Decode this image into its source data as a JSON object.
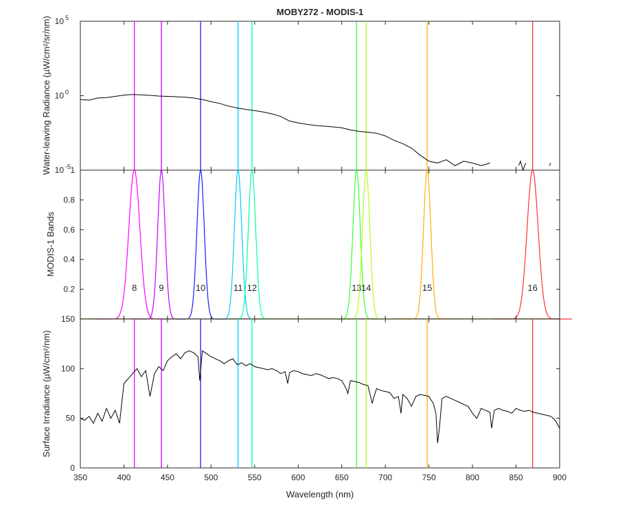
{
  "figure": {
    "title": "MOBY272 - MODIS-1",
    "xlabel": "Wavelength (nm)",
    "x_ticks": [
      "350",
      "400",
      "450",
      "500",
      "550",
      "600",
      "650",
      "700",
      "750",
      "800",
      "850",
      "900"
    ]
  },
  "band_colors": [
    "#ff00ff",
    "#bf00ff",
    "#1a1aff",
    "#00c8ff",
    "#00ffaa",
    "#33ff33",
    "#b3ff1a",
    "#ffae00",
    "#ff3030"
  ],
  "chart_data": [
    {
      "type": "line",
      "title": "MOBY272 - MODIS-1",
      "ylabel": "Water-leaving Radiance (µW/cm²/sr/nm)",
      "yscale": "log",
      "xlim": [
        350,
        900
      ],
      "ylim": [
        1e-05,
        100000.0
      ],
      "y_ticks": [
        {
          "base": "10",
          "exp": "5",
          "value": 100000
        },
        {
          "base": "10",
          "exp": "0",
          "value": 1
        },
        {
          "base": "10",
          "exp": "-5",
          "value": 1e-05
        }
      ],
      "band_centers": [
        412,
        443,
        488,
        531,
        547,
        667,
        678,
        748,
        869
      ],
      "series": [
        {
          "x": [
            350,
            360,
            370,
            380,
            390,
            400,
            410,
            420,
            430,
            440,
            450,
            460,
            470,
            480,
            490,
            500,
            510,
            520,
            530,
            540,
            550,
            560,
            570,
            580,
            590,
            600,
            610,
            620,
            630,
            640,
            650,
            660,
            670,
            680,
            690,
            700,
            710,
            720,
            730,
            740,
            750,
            760,
            770,
            780,
            790,
            800,
            810,
            820,
            853,
            855,
            858,
            861,
            888,
            890
          ],
          "y": [
            0.55,
            0.5,
            0.7,
            0.75,
            0.9,
            1.1,
            1.2,
            1.15,
            1.05,
            0.95,
            0.9,
            0.85,
            0.8,
            0.7,
            0.55,
            0.4,
            0.3,
            0.2,
            0.15,
            0.12,
            0.1,
            0.08,
            0.06,
            0.04,
            0.02,
            0.015,
            0.012,
            0.01,
            0.009,
            0.008,
            0.007,
            0.005,
            0.004,
            0.0035,
            0.003,
            0.002,
            0.001,
            0.0006,
            0.0003,
            0.0001,
            4e-05,
            3e-05,
            5e-05,
            2e-05,
            4e-05,
            3e-05,
            2e-05,
            3e-05,
            2e-05,
            4e-05,
            1e-05,
            3e-05,
            2e-05,
            3e-05
          ]
        }
      ]
    },
    {
      "type": "line",
      "ylabel": "MODIS-1 Bands",
      "xlim": [
        350,
        900
      ],
      "ylim": [
        0,
        1
      ],
      "y_ticks": [
        "0.2",
        "0.4",
        "0.6",
        "0.8",
        "1"
      ],
      "bands": [
        {
          "label": "8",
          "center": 412,
          "width": 15,
          "color_index": 0
        },
        {
          "label": "9",
          "center": 443,
          "width": 10,
          "color_index": 1
        },
        {
          "label": "10",
          "center": 488,
          "width": 10,
          "color_index": 2
        },
        {
          "label": "11",
          "center": 531,
          "width": 10,
          "color_index": 3
        },
        {
          "label": "12",
          "center": 547,
          "width": 10,
          "color_index": 4
        },
        {
          "label": "13",
          "center": 667,
          "width": 10,
          "color_index": 5
        },
        {
          "label": "14",
          "center": 678,
          "width": 10,
          "color_index": 6
        },
        {
          "label": "15",
          "center": 748,
          "width": 10,
          "color_index": 7
        },
        {
          "label": "16",
          "center": 869,
          "width": 15,
          "color_index": 8
        }
      ]
    },
    {
      "type": "line",
      "ylabel": "Surface Irradiance (µW/cm²/nm)",
      "xlim": [
        350,
        900
      ],
      "ylim": [
        0,
        150
      ],
      "y_ticks": [
        "0",
        "50",
        "100",
        "150"
      ],
      "band_centers": [
        412,
        443,
        488,
        531,
        547,
        667,
        678,
        748,
        869
      ],
      "series": [
        {
          "x": [
            350,
            355,
            360,
            365,
            370,
            375,
            380,
            385,
            390,
            395,
            400,
            405,
            410,
            415,
            420,
            425,
            430,
            435,
            440,
            445,
            450,
            455,
            460,
            465,
            470,
            475,
            480,
            485,
            487,
            490,
            495,
            500,
            505,
            510,
            515,
            520,
            525,
            530,
            535,
            540,
            545,
            550,
            555,
            560,
            565,
            570,
            575,
            580,
            585,
            588,
            590,
            595,
            600,
            605,
            610,
            615,
            620,
            625,
            630,
            635,
            640,
            645,
            650,
            655,
            657,
            660,
            665,
            670,
            675,
            680,
            685,
            687,
            690,
            695,
            700,
            705,
            710,
            715,
            718,
            720,
            725,
            730,
            735,
            740,
            745,
            750,
            755,
            758,
            760,
            762,
            765,
            770,
            775,
            780,
            785,
            790,
            795,
            800,
            805,
            810,
            815,
            820,
            822,
            825,
            830,
            835,
            840,
            845,
            850,
            855,
            860,
            865,
            870,
            875,
            880,
            885,
            890,
            895,
            900
          ],
          "y": [
            50,
            48,
            52,
            45,
            55,
            47,
            60,
            50,
            58,
            45,
            85,
            90,
            95,
            100,
            92,
            98,
            72,
            95,
            102,
            98,
            108,
            112,
            115,
            110,
            116,
            118,
            116,
            112,
            88,
            118,
            115,
            112,
            110,
            108,
            105,
            108,
            110,
            104,
            106,
            103,
            105,
            102,
            101,
            100,
            99,
            100,
            98,
            95,
            97,
            85,
            96,
            98,
            97,
            95,
            94,
            93,
            95,
            94,
            92,
            90,
            91,
            90,
            88,
            80,
            75,
            88,
            87,
            86,
            84,
            83,
            65,
            72,
            80,
            78,
            77,
            76,
            70,
            72,
            55,
            74,
            70,
            62,
            72,
            74,
            73,
            72,
            65,
            55,
            25,
            40,
            70,
            72,
            70,
            68,
            66,
            64,
            62,
            55,
            50,
            60,
            58,
            56,
            40,
            58,
            60,
            58,
            57,
            55,
            60,
            58,
            57,
            58,
            56,
            55,
            54,
            53,
            52,
            48,
            40
          ]
        }
      ]
    }
  ]
}
